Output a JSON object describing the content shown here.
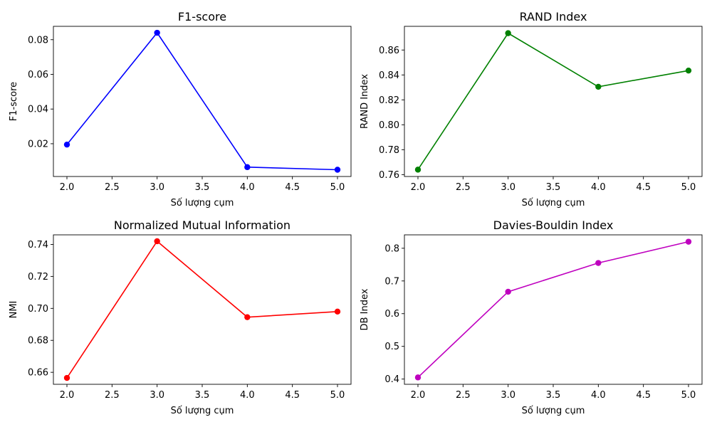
{
  "chart_data": [
    {
      "type": "line",
      "title": "F1-score",
      "xlabel": "Số lượng cụm",
      "ylabel": "F1-score",
      "color": "#0000ff",
      "x": [
        2,
        3,
        4,
        5
      ],
      "values": [
        0.0195,
        0.084,
        0.0065,
        0.005
      ],
      "xlim": [
        1.85,
        5.15
      ],
      "ylim": [
        0.0011,
        0.0877
      ],
      "xticks": [
        2.0,
        2.5,
        3.0,
        3.5,
        4.0,
        4.5,
        5.0
      ],
      "xtick_labels": [
        "2.0",
        "2.5",
        "3.0",
        "3.5",
        "4.0",
        "4.5",
        "5.0"
      ],
      "yticks": [
        0.02,
        0.04,
        0.06,
        0.08
      ],
      "ytick_labels": [
        "0.02",
        "0.04",
        "0.06",
        "0.08"
      ],
      "grid": false
    },
    {
      "type": "line",
      "title": "RAND Index",
      "xlabel": "Số lượng cụm",
      "ylabel": "RAND Index",
      "color": "#008000",
      "x": [
        2,
        3,
        4,
        5
      ],
      "values": [
        0.764,
        0.8735,
        0.8305,
        0.8435
      ],
      "xlim": [
        1.85,
        5.15
      ],
      "ylim": [
        0.7585,
        0.879
      ],
      "xticks": [
        2.0,
        2.5,
        3.0,
        3.5,
        4.0,
        4.5,
        5.0
      ],
      "xtick_labels": [
        "2.0",
        "2.5",
        "3.0",
        "3.5",
        "4.0",
        "4.5",
        "5.0"
      ],
      "yticks": [
        0.76,
        0.78,
        0.8,
        0.82,
        0.84,
        0.86
      ],
      "ytick_labels": [
        "0.76",
        "0.78",
        "0.80",
        "0.82",
        "0.84",
        "0.86"
      ],
      "grid": false
    },
    {
      "type": "line",
      "title": "Normalized Mutual Information",
      "xlabel": "Số lượng cụm",
      "ylabel": "NMI",
      "color": "#ff0000",
      "x": [
        2,
        3,
        4,
        5
      ],
      "values": [
        0.6565,
        0.742,
        0.6945,
        0.698
      ],
      "xlim": [
        1.85,
        5.15
      ],
      "ylim": [
        0.6525,
        0.746
      ],
      "xticks": [
        2.0,
        2.5,
        3.0,
        3.5,
        4.0,
        4.5,
        5.0
      ],
      "xtick_labels": [
        "2.0",
        "2.5",
        "3.0",
        "3.5",
        "4.0",
        "4.5",
        "5.0"
      ],
      "yticks": [
        0.66,
        0.68,
        0.7,
        0.72,
        0.74
      ],
      "ytick_labels": [
        "0.66",
        "0.68",
        "0.70",
        "0.72",
        "0.74"
      ],
      "grid": false
    },
    {
      "type": "line",
      "title": "Davies-Bouldin Index",
      "xlabel": "Số lượng cụm",
      "ylabel": "DB Index",
      "color": "#bf00bf",
      "x": [
        2,
        3,
        4,
        5
      ],
      "values": [
        0.405,
        0.667,
        0.755,
        0.82
      ],
      "xlim": [
        1.85,
        5.15
      ],
      "ylim": [
        0.384,
        0.841
      ],
      "xticks": [
        2.0,
        2.5,
        3.0,
        3.5,
        4.0,
        4.5,
        5.0
      ],
      "xtick_labels": [
        "2.0",
        "2.5",
        "3.0",
        "3.5",
        "4.0",
        "4.5",
        "5.0"
      ],
      "yticks": [
        0.4,
        0.5,
        0.6,
        0.7,
        0.8
      ],
      "ytick_labels": [
        "0.4",
        "0.5",
        "0.6",
        "0.7",
        "0.8"
      ],
      "grid": false
    }
  ]
}
